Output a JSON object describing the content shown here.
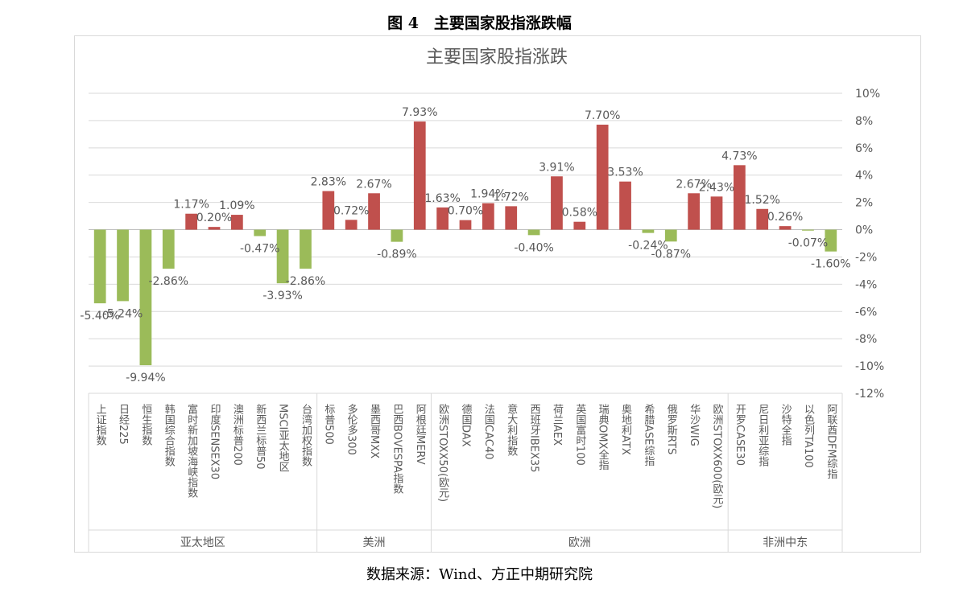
{
  "figure": {
    "caption": "图 4　主要国家股指涨跌幅",
    "source": "数据来源：Wind、方正中期研究院"
  },
  "colors": {
    "positive": "#c0504d",
    "negative": "#9bbb59",
    "grid": "#d9d9d9",
    "text": "#595959"
  },
  "chart_data": {
    "type": "bar",
    "title": "主要国家股指涨跌",
    "unit": "%",
    "ylim": [
      -12,
      10
    ],
    "yticks": [
      10,
      8,
      6,
      4,
      2,
      0,
      -2,
      -4,
      -6,
      -8,
      -10,
      -12
    ],
    "ytick_labels": [
      "10%",
      "8%",
      "6%",
      "4%",
      "2%",
      "0%",
      "-2%",
      "-4%",
      "-6%",
      "-8%",
      "-10%",
      "-12%"
    ],
    "y_axis_position": "right",
    "grid": true,
    "legend": "none",
    "categories": [
      "上证指数",
      "日经225",
      "恒生指数",
      "韩国综合指数",
      "富时新加坡海峡指数",
      "印度SENSEX30",
      "澳洲标普200",
      "新西兰标普50",
      "MSCI亚太地区",
      "台湾加权指数",
      "标普500",
      "多伦多300",
      "墨西哥MXX",
      "巴西BOVESPA指数",
      "阿根廷MERV",
      "欧洲STOXX50(欧元)",
      "德国DAX",
      "法国CAC40",
      "意大利指数",
      "西班牙IBEX35",
      "荷兰AEX",
      "英国富时100",
      "瑞典OMX全指",
      "奥地利ATX",
      "希腊ASE综指",
      "俄罗斯RTS",
      "华沙WIG",
      "欧洲STOXX600(欧元)",
      "开罗CASE30",
      "尼日利亚综指",
      "沙特全指",
      "以色列TA100",
      "阿联酋DFM综指"
    ],
    "values": [
      -5.4,
      -5.24,
      -9.94,
      -2.86,
      1.17,
      0.2,
      1.09,
      -0.47,
      -3.93,
      -2.86,
      2.83,
      0.72,
      2.67,
      -0.89,
      7.93,
      1.63,
      0.7,
      1.94,
      1.72,
      -0.4,
      3.91,
      0.58,
      7.7,
      3.53,
      -0.24,
      -0.87,
      2.67,
      2.43,
      4.73,
      1.52,
      0.26,
      -0.07,
      -1.6
    ],
    "data_labels": [
      "-5.40%",
      "-5.24%",
      "-9.94%",
      "-2.86%",
      "1.17%",
      "0.20%",
      "1.09%",
      "-0.47%",
      "-3.93%",
      "-2.86%",
      "2.83%",
      "0.72%",
      "2.67%",
      "-0.89%",
      "7.93%",
      "1.63%",
      "0.70%",
      "1.94%",
      "1.72%",
      "-0.40%",
      "3.91%",
      "0.58%",
      "7.70%",
      "3.53%",
      "-0.24%",
      "-0.87%",
      "2.67%",
      "2.43%",
      "4.73%",
      "1.52%",
      "0.26%",
      "-0.07%",
      "-1.60%"
    ],
    "groups": [
      {
        "name": "亚太地区",
        "start": 0,
        "count": 10
      },
      {
        "name": "美洲",
        "start": 10,
        "count": 5
      },
      {
        "name": "欧洲",
        "start": 15,
        "count": 13
      },
      {
        "name": "非洲中东",
        "start": 28,
        "count": 5
      }
    ]
  }
}
